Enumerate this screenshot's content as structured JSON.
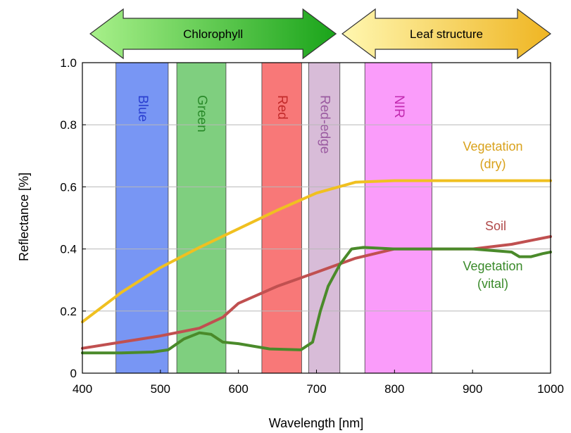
{
  "chart_data": {
    "type": "line",
    "xlabel": "Wavelength [nm]",
    "ylabel": "Reflectance [%]",
    "xlim": [
      400,
      1000
    ],
    "ylim": [
      0,
      1.0
    ],
    "x_ticks": [
      400,
      500,
      600,
      700,
      800,
      900,
      1000
    ],
    "y_ticks": [
      0,
      0.2,
      0.4,
      0.6,
      0.8,
      1.0
    ],
    "y_tick_labels": [
      "0",
      "0.2",
      "0.4",
      "0.6",
      "0.8",
      "1.0"
    ],
    "grid": "horizontal",
    "arrows": [
      {
        "label": "Chlorophyll",
        "from": 410,
        "to": 725,
        "gradient": [
          "#a8f08a",
          "#1aa41a"
        ]
      },
      {
        "label": "Leaf structure",
        "from": 733,
        "to": 1000,
        "gradient": [
          "#fff7b0",
          "#efb522"
        ]
      }
    ],
    "bands": [
      {
        "label": "Blue",
        "from": 443,
        "to": 510,
        "color": "#7896f4",
        "text_color": "#2a3fd0"
      },
      {
        "label": "Green",
        "from": 521,
        "to": 584,
        "color": "#7fcf7f",
        "text_color": "#2a8a2a"
      },
      {
        "label": "Red",
        "from": 630,
        "to": 681,
        "color": "#f87878",
        "text_color": "#c22a2a"
      },
      {
        "label": "Red-edge",
        "from": 690,
        "to": 730,
        "color": "#d8bcd8",
        "text_color": "#9a5aa0"
      },
      {
        "label": "NIR",
        "from": 762,
        "to": 848,
        "color": "#fa9cfa",
        "text_color": "#c22ab0"
      }
    ],
    "series": [
      {
        "name": "Vegetation (dry)",
        "label_lines": [
          "Vegetation",
          "(dry)"
        ],
        "color": "#f0c020",
        "label_color": "#d9a21c",
        "points": [
          [
            400,
            0.165
          ],
          [
            450,
            0.26
          ],
          [
            500,
            0.34
          ],
          [
            550,
            0.405
          ],
          [
            600,
            0.465
          ],
          [
            650,
            0.525
          ],
          [
            700,
            0.58
          ],
          [
            750,
            0.615
          ],
          [
            800,
            0.62
          ],
          [
            900,
            0.62
          ],
          [
            1000,
            0.62
          ]
        ]
      },
      {
        "name": "Soil",
        "label_lines": [
          "Soil"
        ],
        "color": "#c05050",
        "label_color": "#b04a4a",
        "points": [
          [
            400,
            0.08
          ],
          [
            450,
            0.1
          ],
          [
            470,
            0.108
          ],
          [
            500,
            0.12
          ],
          [
            550,
            0.145
          ],
          [
            580,
            0.18
          ],
          [
            600,
            0.225
          ],
          [
            650,
            0.28
          ],
          [
            700,
            0.325
          ],
          [
            750,
            0.37
          ],
          [
            800,
            0.4
          ],
          [
            900,
            0.4
          ],
          [
            950,
            0.415
          ],
          [
            1000,
            0.44
          ]
        ]
      },
      {
        "name": "Vegetation (vital)",
        "label_lines": [
          "Vegetation",
          "(vital)"
        ],
        "color": "#4a8a2a",
        "label_color": "#3a8a2a",
        "points": [
          [
            400,
            0.065
          ],
          [
            450,
            0.065
          ],
          [
            490,
            0.068
          ],
          [
            510,
            0.075
          ],
          [
            530,
            0.11
          ],
          [
            550,
            0.13
          ],
          [
            565,
            0.125
          ],
          [
            580,
            0.1
          ],
          [
            600,
            0.095
          ],
          [
            640,
            0.078
          ],
          [
            680,
            0.075
          ],
          [
            695,
            0.1
          ],
          [
            705,
            0.2
          ],
          [
            715,
            0.28
          ],
          [
            730,
            0.35
          ],
          [
            745,
            0.4
          ],
          [
            760,
            0.405
          ],
          [
            800,
            0.4
          ],
          [
            850,
            0.4
          ],
          [
            900,
            0.4
          ],
          [
            950,
            0.39
          ],
          [
            960,
            0.375
          ],
          [
            975,
            0.375
          ],
          [
            990,
            0.385
          ],
          [
            1000,
            0.39
          ]
        ]
      }
    ]
  }
}
